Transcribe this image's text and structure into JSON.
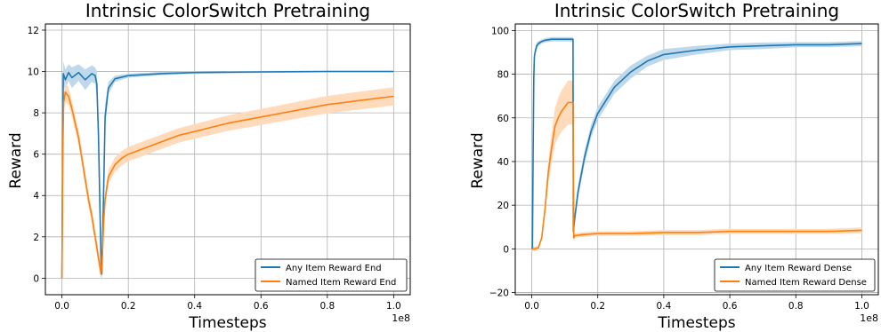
{
  "chart_data": [
    {
      "type": "line",
      "title": "Intrinsic ColorSwitch Pretraining",
      "xlabel": "Timesteps",
      "ylabel": "Reward",
      "x_offset_label": "1e8",
      "xlim": [
        -0.05,
        1.05
      ],
      "ylim": [
        -0.8,
        12.3
      ],
      "xticks": [
        0.0,
        0.2,
        0.4,
        0.6,
        0.8,
        1.0
      ],
      "xtick_labels": [
        "0.0",
        "0.2",
        "0.4",
        "0.6",
        "0.8",
        "1.0"
      ],
      "yticks": [
        0,
        2,
        4,
        6,
        8,
        10,
        12
      ],
      "ytick_labels": [
        "0",
        "2",
        "4",
        "6",
        "8",
        "10",
        "12"
      ],
      "grid": true,
      "legend_position": "lower-right",
      "series": [
        {
          "name": "Any Item Reward End",
          "color": "#1f77b4",
          "x": [
            0.0,
            0.002,
            0.004,
            0.01,
            0.02,
            0.03,
            0.05,
            0.07,
            0.09,
            0.1,
            0.105,
            0.11,
            0.115,
            0.118,
            0.12,
            0.124,
            0.13,
            0.14,
            0.16,
            0.2,
            0.3,
            0.4,
            0.6,
            0.8,
            1.0
          ],
          "y": [
            0.0,
            6.0,
            9.9,
            9.6,
            9.95,
            9.7,
            9.95,
            9.6,
            9.9,
            9.8,
            9.4,
            7.0,
            3.0,
            0.8,
            0.2,
            3.0,
            7.8,
            9.2,
            9.65,
            9.8,
            9.9,
            9.95,
            9.98,
            10.0,
            10.0
          ],
          "band": [
            0.0,
            1.5,
            0.6,
            0.5,
            0.4,
            0.5,
            0.4,
            0.5,
            0.4,
            0.4,
            0.6,
            1.0,
            1.0,
            0.6,
            0.3,
            0.8,
            0.6,
            0.3,
            0.15,
            0.1,
            0.08,
            0.06,
            0.05,
            0.04,
            0.04
          ]
        },
        {
          "name": "Named Item Reward End",
          "color": "#ff7f0e",
          "x": [
            0.0,
            0.002,
            0.005,
            0.01,
            0.02,
            0.03,
            0.04,
            0.05,
            0.06,
            0.07,
            0.08,
            0.09,
            0.1,
            0.11,
            0.118,
            0.122,
            0.126,
            0.13,
            0.14,
            0.16,
            0.18,
            0.2,
            0.25,
            0.3,
            0.35,
            0.4,
            0.5,
            0.6,
            0.7,
            0.8,
            0.9,
            1.0
          ],
          "y": [
            0.0,
            5.5,
            8.5,
            9.0,
            8.8,
            8.2,
            7.5,
            6.8,
            5.8,
            4.8,
            3.8,
            3.0,
            2.0,
            1.0,
            0.2,
            1.2,
            2.8,
            3.8,
            4.9,
            5.5,
            5.8,
            6.0,
            6.3,
            6.6,
            6.9,
            7.1,
            7.5,
            7.8,
            8.1,
            8.4,
            8.6,
            8.8
          ]
        }
      ]
    },
    {
      "type": "line",
      "title": "Intrinsic ColorSwitch Pretraining",
      "xlabel": "Timesteps",
      "ylabel": "Reward",
      "x_offset_label": "1e8",
      "xlim": [
        -0.05,
        1.05
      ],
      "ylim": [
        -21,
        103
      ],
      "xticks": [
        0.0,
        0.2,
        0.4,
        0.6,
        0.8,
        1.0
      ],
      "xtick_labels": [
        "0.0",
        "0.2",
        "0.4",
        "0.6",
        "0.8",
        "1.0"
      ],
      "yticks": [
        -20,
        0,
        20,
        40,
        60,
        80,
        100
      ],
      "ytick_labels": [
        "−20",
        "0",
        "20",
        "40",
        "60",
        "80",
        "100"
      ],
      "grid": true,
      "legend_position": "lower-right",
      "series": [
        {
          "name": "Any Item Reward Dense",
          "color": "#1f77b4",
          "x": [
            0.0,
            0.002,
            0.004,
            0.006,
            0.008,
            0.01,
            0.015,
            0.02,
            0.03,
            0.04,
            0.06,
            0.08,
            0.1,
            0.115,
            0.125,
            0.126,
            0.13,
            0.14,
            0.16,
            0.18,
            0.2,
            0.25,
            0.3,
            0.35,
            0.4,
            0.5,
            0.6,
            0.7,
            0.8,
            0.9,
            1.0
          ],
          "y": [
            0.0,
            0.5,
            40.0,
            78.0,
            88.0,
            90.0,
            93.0,
            94.0,
            95.0,
            95.5,
            96.0,
            96.0,
            96.0,
            96.0,
            96.0,
            8.0,
            14.0,
            26.0,
            42.0,
            54.0,
            62.0,
            74.0,
            81.0,
            86.0,
            89.0,
            91.0,
            92.5,
            93.0,
            93.5,
            93.5,
            94.0
          ],
          "band": [
            0,
            0.5,
            3,
            3,
            2,
            2,
            1.5,
            1.2,
            1,
            1,
            1,
            1,
            1,
            1,
            1,
            3,
            3,
            3,
            3,
            3,
            3,
            3,
            3,
            2.5,
            2.5,
            2,
            1.5,
            1.5,
            1.2,
            1.2,
            1.2
          ]
        },
        {
          "name": "Named Item Reward Dense",
          "color": "#ff7f0e",
          "x": [
            0.0,
            0.01,
            0.02,
            0.03,
            0.04,
            0.05,
            0.06,
            0.07,
            0.08,
            0.09,
            0.1,
            0.11,
            0.12,
            0.125,
            0.127,
            0.13,
            0.15,
            0.2,
            0.3,
            0.4,
            0.5,
            0.6,
            0.7,
            0.8,
            0.9,
            1.0
          ],
          "y": [
            0.0,
            0.0,
            0.5,
            5.0,
            18.0,
            35.0,
            46.0,
            56.0,
            60.0,
            63.0,
            65.0,
            67.0,
            67.0,
            67.0,
            5.0,
            6.0,
            6.5,
            7.0,
            7.0,
            7.5,
            7.5,
            8.0,
            8.0,
            8.0,
            8.0,
            8.5
          ]
        }
      ]
    }
  ]
}
